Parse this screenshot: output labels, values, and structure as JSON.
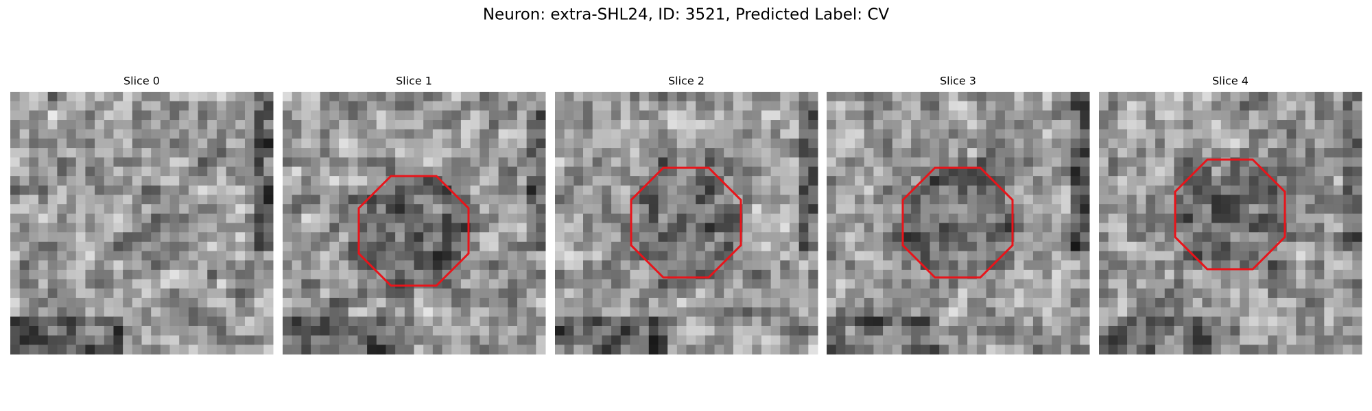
{
  "title": "Neuron: extra-SHL24, ID: 3521, Predicted Label: CV",
  "panels": [
    {
      "title": "Slice 0"
    },
    {
      "title": "Slice 1"
    },
    {
      "title": "Slice 2"
    },
    {
      "title": "Slice 3"
    },
    {
      "title": "Slice 4"
    }
  ]
}
